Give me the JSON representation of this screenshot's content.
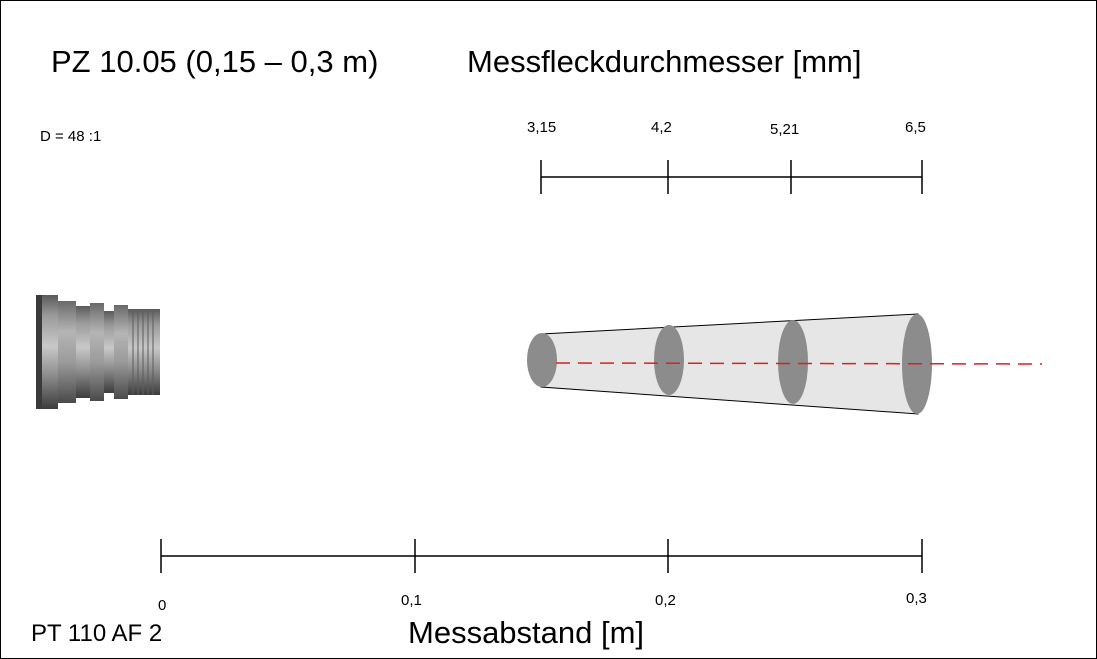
{
  "diagram": {
    "title": "PZ 10.05 (0,15 – 0,3 m)",
    "spot_axis_title": "Messfleckdurchmesser [mm]",
    "ratio": "D = 48 :1",
    "spot_diameters": [
      "3,15",
      "4,2",
      "5,21",
      "6,5"
    ],
    "distance_ticks": [
      "0",
      "0,1",
      "0,2",
      "0,3"
    ],
    "distance_axis_title": "Messabstand [m]",
    "device": "PT 110 AF 2"
  },
  "colors": {
    "ellipse": "#8c8c8c",
    "cone": "#e6e6e6",
    "centerline": "#dd1f1f",
    "lines": "#000000"
  },
  "icons": {
    "sensor": "pyrometer-sensor-icon"
  }
}
